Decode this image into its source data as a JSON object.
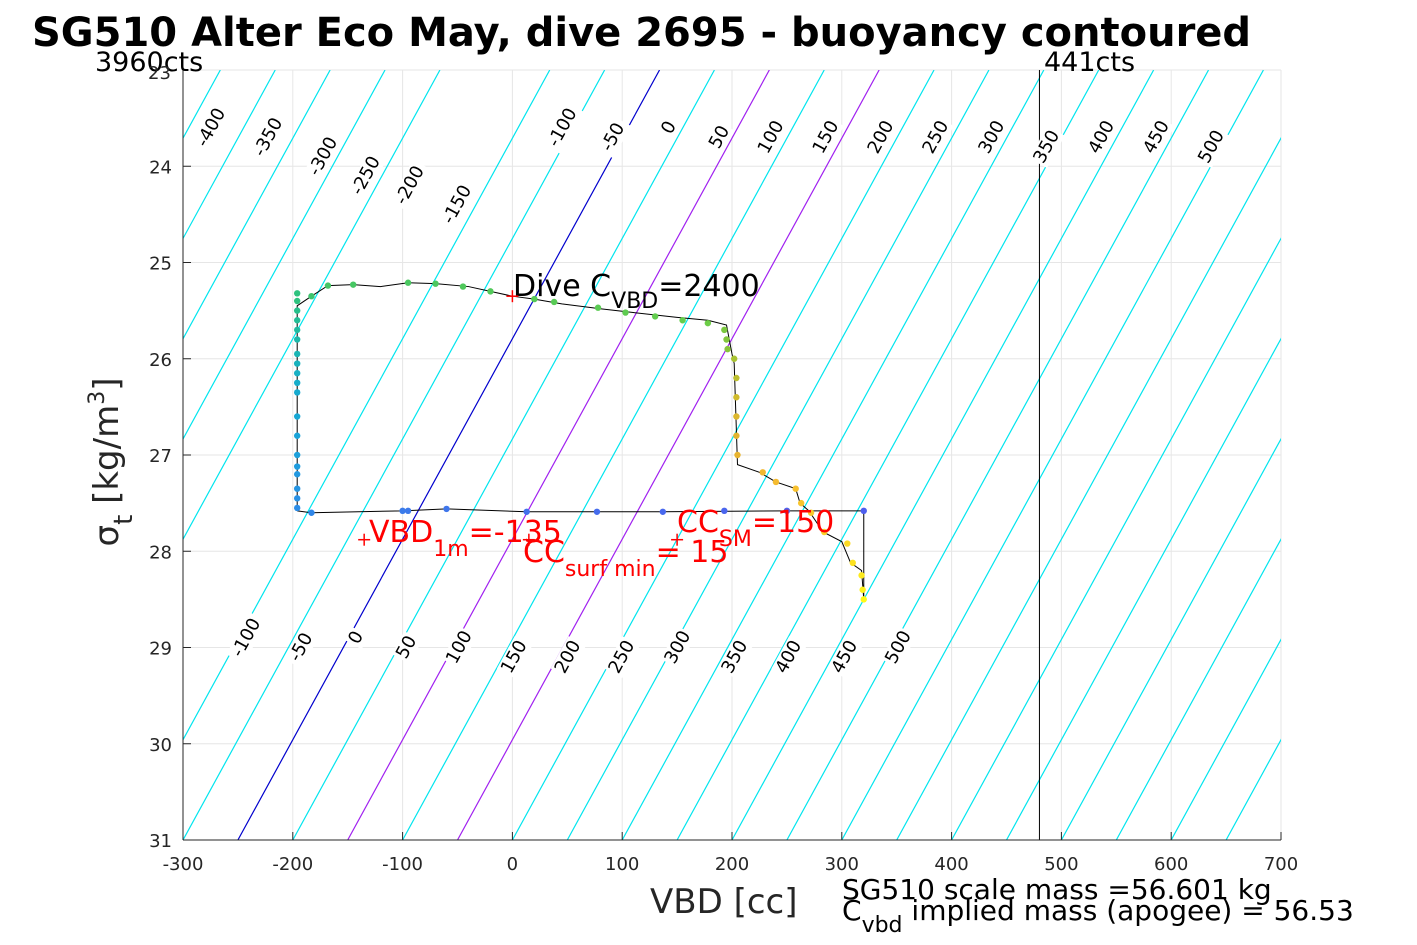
{
  "chart_data": {
    "type": "scatter",
    "title": "SG510 Alter Eco May, dive 2695 - buoyancy contoured",
    "xlabel": "VBD [cc]",
    "ylabel": "σt [kg/m3]",
    "ylabel_parts": {
      "sym": "σ",
      "sub": "t",
      "main": " [kg/m",
      "sup": "3",
      "close": "]"
    },
    "xlim": [
      -300,
      700
    ],
    "ylim": [
      23,
      31
    ],
    "y_reversed": true,
    "grid": true,
    "xticks": [
      -300,
      -200,
      -100,
      0,
      100,
      200,
      300,
      400,
      500,
      600,
      700
    ],
    "xtick_labels": [
      "-300",
      "-200",
      "-100",
      "0",
      "100",
      "200",
      "300",
      "400",
      "500",
      "600",
      "700"
    ],
    "yticks": [
      24,
      25,
      26,
      27,
      28,
      29,
      30,
      31
    ],
    "ytick_labels": [
      "24",
      "25",
      "26",
      "27",
      "28",
      "29",
      "30",
      "31"
    ],
    "top_left_label": "3960cts",
    "top_right_label": "441cts",
    "counts_line_x": 480,
    "contour_line_dx_per_sigma": 48,
    "contours": [
      {
        "value": -400,
        "label": "-400",
        "x_at_bottom": -700,
        "color": "#00e5ee"
      },
      {
        "value": -350,
        "label": "-350",
        "x_at_bottom": -650,
        "color": "#00e5ee"
      },
      {
        "value": -300,
        "label": "-300",
        "x_at_bottom": -600,
        "color": "#00e5ee"
      },
      {
        "value": -250,
        "label": "-250",
        "x_at_bottom": -550,
        "color": "#00e5ee"
      },
      {
        "value": -200,
        "label": "-200",
        "x_at_bottom": -500,
        "color": "#00e5ee"
      },
      {
        "value": -150,
        "label": "-150",
        "x_at_bottom": -450,
        "color": "#00e5ee"
      },
      {
        "value": -100,
        "label": "-100",
        "x_at_bottom": -350,
        "color": "#00e5ee"
      },
      {
        "value": -50,
        "label": "-50",
        "x_at_bottom": -300,
        "color": "#00e5ee"
      },
      {
        "value": 0,
        "label": "0",
        "x_at_bottom": -250,
        "color": "#0000cd"
      },
      {
        "value": 50,
        "label": "50",
        "x_at_bottom": -200,
        "color": "#00e5ee"
      },
      {
        "value": 100,
        "label": "100",
        "x_at_bottom": -150,
        "color": "#a020f0"
      },
      {
        "value": 150,
        "label": "150",
        "x_at_bottom": -100,
        "color": "#00e5ee"
      },
      {
        "value": 200,
        "label": "200",
        "x_at_bottom": -50,
        "color": "#a020f0"
      },
      {
        "value": 250,
        "label": "250",
        "x_at_bottom": 0,
        "color": "#00e5ee"
      },
      {
        "value": 300,
        "label": "300",
        "x_at_bottom": 50,
        "color": "#00e5ee"
      },
      {
        "value": 350,
        "label": "350",
        "x_at_bottom": 100,
        "color": "#00e5ee"
      },
      {
        "value": 400,
        "label": "400",
        "x_at_bottom": 150,
        "color": "#00e5ee"
      },
      {
        "value": 450,
        "label": "450",
        "x_at_bottom": 200,
        "color": "#00e5ee"
      },
      {
        "value": 500,
        "label": "500",
        "x_at_bottom": 250,
        "color": "#00e5ee"
      },
      {
        "value": 550,
        "label": "",
        "x_at_bottom": 300,
        "color": "#00e5ee"
      },
      {
        "value": 600,
        "label": "",
        "x_at_bottom": 350,
        "color": "#00e5ee"
      },
      {
        "value": 650,
        "label": "",
        "x_at_bottom": 400,
        "color": "#00e5ee"
      },
      {
        "value": 700,
        "label": "",
        "x_at_bottom": 450,
        "color": "#00e5ee"
      },
      {
        "value": 750,
        "label": "",
        "x_at_bottom": 500,
        "color": "#00e5ee"
      },
      {
        "value": 800,
        "label": "",
        "x_at_bottom": 550,
        "color": "#00e5ee"
      },
      {
        "value": 850,
        "label": "",
        "x_at_bottom": 600,
        "color": "#00e5ee"
      },
      {
        "value": 900,
        "label": "",
        "x_at_bottom": 650,
        "color": "#00e5ee"
      },
      {
        "value": 950,
        "label": "",
        "x_at_bottom": 700,
        "color": "#00e5ee"
      }
    ],
    "upper_contour_labels": [
      {
        "text": "-400",
        "vbd": -274,
        "sigma": 23.6
      },
      {
        "text": "-350",
        "vbd": -222,
        "sigma": 23.7
      },
      {
        "text": "-300",
        "vbd": -172,
        "sigma": 23.9
      },
      {
        "text": "-250",
        "vbd": -133,
        "sigma": 24.1
      },
      {
        "text": "-200",
        "vbd": -93,
        "sigma": 24.2
      },
      {
        "text": "-150",
        "vbd": -50,
        "sigma": 24.4
      },
      {
        "text": "-100",
        "vbd": 46,
        "sigma": 23.6
      },
      {
        "text": "-50",
        "vbd": 92,
        "sigma": 23.7
      },
      {
        "text": "0",
        "vbd": 143,
        "sigma": 23.6
      },
      {
        "text": "50",
        "vbd": 189,
        "sigma": 23.7
      },
      {
        "text": "100",
        "vbd": 236,
        "sigma": 23.7
      },
      {
        "text": "150",
        "vbd": 286,
        "sigma": 23.7
      },
      {
        "text": "200",
        "vbd": 336,
        "sigma": 23.7
      },
      {
        "text": "250",
        "vbd": 386,
        "sigma": 23.7
      },
      {
        "text": "300",
        "vbd": 437,
        "sigma": 23.7
      },
      {
        "text": "350",
        "vbd": 487,
        "sigma": 23.8
      },
      {
        "text": "400",
        "vbd": 537,
        "sigma": 23.7
      },
      {
        "text": "450",
        "vbd": 587,
        "sigma": 23.7
      },
      {
        "text": "500",
        "vbd": 637,
        "sigma": 23.8
      }
    ],
    "lower_contour_labels": [
      {
        "text": "-100",
        "vbd": -242,
        "sigma": 28.9
      },
      {
        "text": "-50",
        "vbd": -192,
        "sigma": 29.0
      },
      {
        "text": "0",
        "vbd": -142,
        "sigma": 28.9
      },
      {
        "text": "50",
        "vbd": -96,
        "sigma": 29.0
      },
      {
        "text": "100",
        "vbd": -48,
        "sigma": 29.0
      },
      {
        "text": "150",
        "vbd": 2,
        "sigma": 29.1
      },
      {
        "text": "200",
        "vbd": 51,
        "sigma": 29.1
      },
      {
        "text": "250",
        "vbd": 100,
        "sigma": 29.1
      },
      {
        "text": "300",
        "vbd": 151,
        "sigma": 29.0
      },
      {
        "text": "350",
        "vbd": 203,
        "sigma": 29.1
      },
      {
        "text": "400",
        "vbd": 252,
        "sigma": 29.1
      },
      {
        "text": "450",
        "vbd": 303,
        "sigma": 29.1
      },
      {
        "text": "500",
        "vbd": 352,
        "sigma": 29.0
      }
    ],
    "series": [
      {
        "name": "dive trace",
        "line": [
          [
            -196,
            27.58
          ],
          [
            -196,
            25.45
          ],
          [
            -183,
            25.35
          ],
          [
            -168,
            25.24
          ],
          [
            -145,
            25.23
          ],
          [
            -120,
            25.25
          ],
          [
            -95,
            25.21
          ],
          [
            -70,
            25.22
          ],
          [
            -40,
            25.25
          ],
          [
            -20,
            25.3
          ],
          [
            0,
            25.35
          ],
          [
            20,
            25.38
          ],
          [
            45,
            25.43
          ],
          [
            80,
            25.48
          ],
          [
            110,
            25.52
          ],
          [
            150,
            25.57
          ],
          [
            178,
            25.6
          ],
          [
            195,
            25.65
          ],
          [
            200,
            25.95
          ],
          [
            202,
            26.05
          ],
          [
            205,
            27.1
          ],
          [
            225,
            27.18
          ],
          [
            240,
            27.28
          ],
          [
            258,
            27.35
          ],
          [
            262,
            27.5
          ],
          [
            270,
            27.58
          ],
          [
            283,
            27.8
          ],
          [
            300,
            27.9
          ],
          [
            308,
            28.12
          ],
          [
            318,
            28.2
          ],
          [
            320,
            28.5
          ],
          [
            320,
            27.58
          ],
          [
            250,
            27.58
          ],
          [
            137,
            27.59
          ],
          [
            77,
            27.59
          ],
          [
            13,
            27.59
          ],
          [
            -60,
            27.56
          ],
          [
            -100,
            27.58
          ],
          [
            -183,
            27.6
          ],
          [
            -196,
            27.58
          ]
        ],
        "points": [
          {
            "vbd": -196,
            "sigma": 25.32,
            "color": "#2ec27e"
          },
          {
            "vbd": -196,
            "sigma": 25.4,
            "color": "#2ec27e"
          },
          {
            "vbd": -196,
            "sigma": 25.5,
            "color": "#26bf8a"
          },
          {
            "vbd": -196,
            "sigma": 25.6,
            "color": "#22bd96"
          },
          {
            "vbd": -196,
            "sigma": 25.7,
            "color": "#1fbba0"
          },
          {
            "vbd": -196,
            "sigma": 25.8,
            "color": "#1cb8aa"
          },
          {
            "vbd": -196,
            "sigma": 25.95,
            "color": "#1ab5b4"
          },
          {
            "vbd": -196,
            "sigma": 26.05,
            "color": "#18b2bd"
          },
          {
            "vbd": -196,
            "sigma": 26.15,
            "color": "#17b0c4"
          },
          {
            "vbd": -196,
            "sigma": 26.25,
            "color": "#16adca"
          },
          {
            "vbd": -196,
            "sigma": 26.35,
            "color": "#16aacf"
          },
          {
            "vbd": -196,
            "sigma": 26.6,
            "color": "#17a7d4"
          },
          {
            "vbd": -196,
            "sigma": 26.8,
            "color": "#19a3d8"
          },
          {
            "vbd": -196,
            "sigma": 27.0,
            "color": "#1ca0db"
          },
          {
            "vbd": -196,
            "sigma": 27.12,
            "color": "#1f9cde"
          },
          {
            "vbd": -196,
            "sigma": 27.2,
            "color": "#2298e0"
          },
          {
            "vbd": -196,
            "sigma": 27.35,
            "color": "#2594e2"
          },
          {
            "vbd": -196,
            "sigma": 27.45,
            "color": "#2890e4"
          },
          {
            "vbd": -196,
            "sigma": 27.55,
            "color": "#2b8ce6"
          },
          {
            "vbd": -183,
            "sigma": 25.35,
            "color": "#3ec46e"
          },
          {
            "vbd": -168,
            "sigma": 25.24,
            "color": "#45c565"
          },
          {
            "vbd": -145,
            "sigma": 25.23,
            "color": "#47c663"
          },
          {
            "vbd": -95,
            "sigma": 25.21,
            "color": "#4ac760"
          },
          {
            "vbd": -70,
            "sigma": 25.22,
            "color": "#4cc75e"
          },
          {
            "vbd": -45,
            "sigma": 25.25,
            "color": "#4fc85c"
          },
          {
            "vbd": -20,
            "sigma": 25.3,
            "color": "#52c95a"
          },
          {
            "vbd": 20,
            "sigma": 25.38,
            "color": "#55c957"
          },
          {
            "vbd": 38,
            "sigma": 25.41,
            "color": "#58ca55"
          },
          {
            "vbd": 78,
            "sigma": 25.47,
            "color": "#5bcb53"
          },
          {
            "vbd": 103,
            "sigma": 25.52,
            "color": "#5ecb50"
          },
          {
            "vbd": 130,
            "sigma": 25.56,
            "color": "#62cc4e"
          },
          {
            "vbd": 155,
            "sigma": 25.6,
            "color": "#65cd4b"
          },
          {
            "vbd": 178,
            "sigma": 25.63,
            "color": "#6ccd46"
          },
          {
            "vbd": 193,
            "sigma": 25.7,
            "color": "#7bc83f"
          },
          {
            "vbd": 195,
            "sigma": 25.8,
            "color": "#82c63c"
          },
          {
            "vbd": 196,
            "sigma": 25.9,
            "color": "#88c43a"
          },
          {
            "vbd": 202,
            "sigma": 26.0,
            "color": "#a8c232"
          },
          {
            "vbd": 204,
            "sigma": 26.2,
            "color": "#bdbf2e"
          },
          {
            "vbd": 204,
            "sigma": 26.4,
            "color": "#d0bb2c"
          },
          {
            "vbd": 204,
            "sigma": 26.6,
            "color": "#dcb72d"
          },
          {
            "vbd": 204,
            "sigma": 26.8,
            "color": "#e3b42f"
          },
          {
            "vbd": 205,
            "sigma": 27.0,
            "color": "#e8b430"
          },
          {
            "vbd": 228,
            "sigma": 27.18,
            "color": "#f2b830"
          },
          {
            "vbd": 240,
            "sigma": 27.28,
            "color": "#f5bb2f"
          },
          {
            "vbd": 258,
            "sigma": 27.35,
            "color": "#f7c02e"
          },
          {
            "vbd": 263,
            "sigma": 27.5,
            "color": "#f8c52d"
          },
          {
            "vbd": 272,
            "sigma": 27.6,
            "color": "#f9cb2b"
          },
          {
            "vbd": 284,
            "sigma": 27.8,
            "color": "#fad228"
          },
          {
            "vbd": 305,
            "sigma": 27.92,
            "color": "#fbda24"
          },
          {
            "vbd": 310,
            "sigma": 28.12,
            "color": "#fce221"
          },
          {
            "vbd": 318,
            "sigma": 28.25,
            "color": "#fdea1d"
          },
          {
            "vbd": 319,
            "sigma": 28.4,
            "color": "#fef21a"
          },
          {
            "vbd": 320,
            "sigma": 28.5,
            "color": "#fffa16"
          },
          {
            "vbd": -183,
            "sigma": 27.6,
            "color": "#2f86e8"
          },
          {
            "vbd": -100,
            "sigma": 27.58,
            "color": "#3a7bea"
          },
          {
            "vbd": -95,
            "sigma": 27.58,
            "color": "#3c79ea"
          },
          {
            "vbd": -60,
            "sigma": 27.56,
            "color": "#3f76eb"
          },
          {
            "vbd": 13,
            "sigma": 27.59,
            "color": "#4270ec"
          },
          {
            "vbd": 77,
            "sigma": 27.59,
            "color": "#456ced"
          },
          {
            "vbd": 137,
            "sigma": 27.59,
            "color": "#4868ee"
          },
          {
            "vbd": 193,
            "sigma": 27.58,
            "color": "#4a65ee"
          },
          {
            "vbd": 250,
            "sigma": 27.58,
            "color": "#4c62ef"
          },
          {
            "vbd": 320,
            "sigma": 27.58,
            "color": "#4e5fef"
          }
        ]
      }
    ],
    "annotations": {
      "dive_c_vbd": {
        "prefix": "Dive C",
        "sub": "VBD",
        "suffix": "=2400",
        "color": "#000000",
        "marker_vbd": 0,
        "marker_sigma": 25.35
      },
      "vbd_1m": {
        "prefix": "VBD",
        "sub": "1m",
        "suffix": "=-135",
        "color": "#ff0000",
        "marker_vbd": -135
      },
      "cc_surf_min": {
        "prefix": "CC",
        "sub": "surf min",
        "suffix": "= 15",
        "color": "#ff0000",
        "marker_vbd": 15
      },
      "cc_sm": {
        "prefix": "CC",
        "sub": "SM",
        "suffix": "=150",
        "color": "#ff0000",
        "marker_vbd": 150
      },
      "marker_color": "#ff0000"
    },
    "footer": {
      "line1": "SG510 scale mass =56.601 kg",
      "line2_prefix": "C",
      "line2_sub": "vbd",
      "line2_suffix": " implied mass (apogee) = 56.53"
    }
  }
}
